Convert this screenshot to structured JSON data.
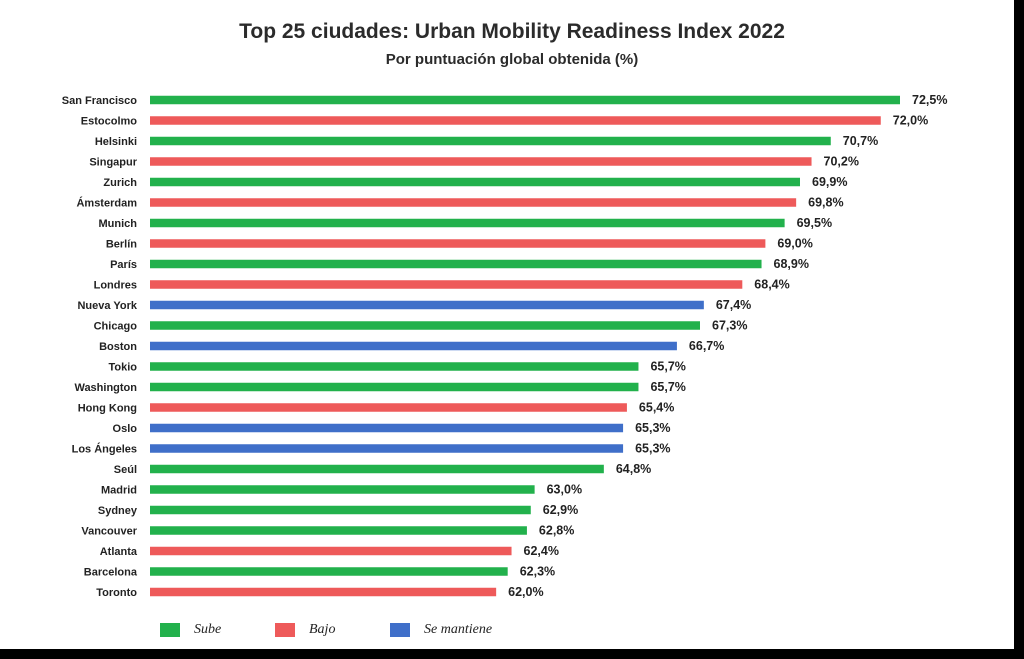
{
  "title": "Top 25 ciudades: Urban Mobility Readiness Index 2022",
  "subtitle": "Por puntuación global obtenida (%)",
  "colors": {
    "sube": "#22b14c",
    "bajo": "#ee5a5a",
    "mantiene": "#3f6fc9"
  },
  "legend": [
    {
      "key": "sube",
      "label": "Sube"
    },
    {
      "key": "bajo",
      "label": "Bajo"
    },
    {
      "key": "mantiene",
      "label": "Se mantiene"
    }
  ],
  "chart_data": {
    "type": "bar",
    "orientation": "horizontal",
    "title": "Top 25 ciudades: Urban Mobility Readiness Index 2022",
    "subtitle": "Por puntuación global obtenida (%)",
    "categories": [
      "San Francisco",
      "Estocolmo",
      "Helsinki",
      "Singapur",
      "Zurich",
      "Ámsterdam",
      "Munich",
      "Berlín",
      "París",
      "Londres",
      "Nueva York",
      "Chicago",
      "Boston",
      "Tokio",
      "Washington",
      "Hong Kong",
      "Oslo",
      "Los Ángeles",
      "Seúl",
      "Madrid",
      "Sydney",
      "Vancouver",
      "Atlanta",
      "Barcelona",
      "Toronto"
    ],
    "values": [
      72.5,
      72.0,
      70.7,
      70.2,
      69.9,
      69.8,
      69.5,
      69.0,
      68.9,
      68.4,
      67.4,
      67.3,
      66.7,
      65.7,
      65.7,
      65.4,
      65.3,
      65.3,
      64.8,
      63.0,
      62.9,
      62.8,
      62.4,
      62.3,
      62.0
    ],
    "value_labels": [
      "72,5%",
      "72,0%",
      "70,7%",
      "70,2%",
      "69,9%",
      "69,8%",
      "69,5%",
      "69,0%",
      "68,9%",
      "68,4%",
      "67,4%",
      "67,3%",
      "66,7%",
      "65,7%",
      "65,7%",
      "65,4%",
      "65,3%",
      "65,3%",
      "64,8%",
      "63,0%",
      "62,9%",
      "62,8%",
      "62,4%",
      "62,3%",
      "62,0%"
    ],
    "trend": [
      "sube",
      "bajo",
      "sube",
      "bajo",
      "sube",
      "bajo",
      "sube",
      "bajo",
      "sube",
      "bajo",
      "mantiene",
      "sube",
      "mantiene",
      "sube",
      "sube",
      "bajo",
      "mantiene",
      "mantiene",
      "sube",
      "sube",
      "sube",
      "sube",
      "bajo",
      "sube",
      "bajo"
    ],
    "xlim": [
      53,
      72.5
    ],
    "grid": false,
    "legend_position": "bottom"
  }
}
